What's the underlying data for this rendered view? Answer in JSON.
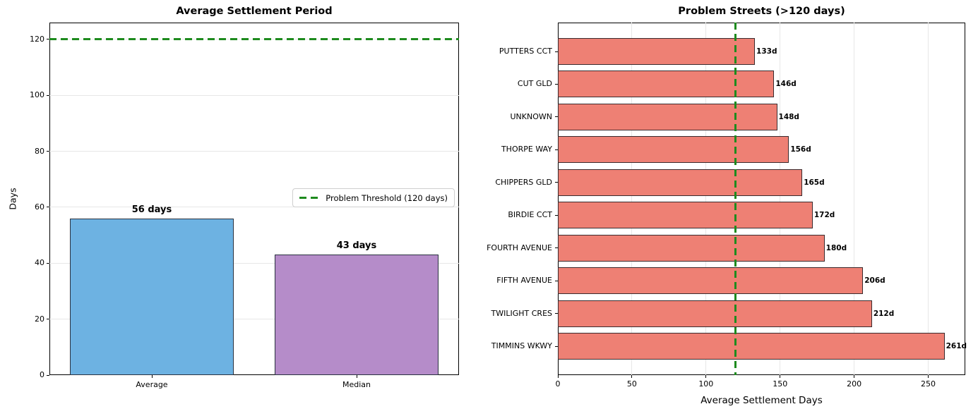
{
  "colors": {
    "average_bar": "#6DB2E2",
    "median_bar": "#B58CC9",
    "problem_bar": "#EE8074",
    "left_bar_edge": "#2A3240",
    "right_bar_edge": "#3A2B2E",
    "threshold_green": "#1E8B1E",
    "grid": "#E7E7E7",
    "axis": "#000000"
  },
  "chart_data": [
    {
      "type": "bar",
      "title": "Average Settlement Period",
      "ylabel": "Days",
      "categories": [
        "Average",
        "Median"
      ],
      "values": [
        56,
        43
      ],
      "bar_labels": [
        "56 days",
        "43 days"
      ],
      "bar_color_keys": [
        "average_bar",
        "median_bar"
      ],
      "yticks": [
        0,
        20,
        40,
        60,
        80,
        100,
        120
      ],
      "ylim": [
        0,
        126
      ],
      "threshold": 120,
      "legend": {
        "label": "Problem Threshold (120 days)",
        "position": "center right"
      },
      "grid": "horizontal"
    },
    {
      "type": "barh",
      "title": "Problem Streets (>120 days)",
      "xlabel": "Average Settlement Days",
      "categories": [
        "PUTTERS CCT",
        "CUT GLD",
        "UNKNOWN",
        "THORPE WAY",
        "CHIPPERS GLD",
        "BIRDIE CCT",
        "FOURTH AVENUE",
        "FIFTH AVENUE",
        "TWILIGHT CRES",
        "TIMMINS WKWY"
      ],
      "values": [
        133,
        146,
        148,
        156,
        165,
        172,
        180,
        206,
        212,
        261
      ],
      "bar_labels": [
        "133d",
        "146d",
        "148d",
        "156d",
        "165d",
        "172d",
        "180d",
        "206d",
        "212d",
        "261d"
      ],
      "bar_color_key": "problem_bar",
      "xticks": [
        0,
        50,
        100,
        150,
        200,
        250
      ],
      "xlim": [
        0,
        275
      ],
      "threshold": 120,
      "grid": "vertical"
    }
  ]
}
